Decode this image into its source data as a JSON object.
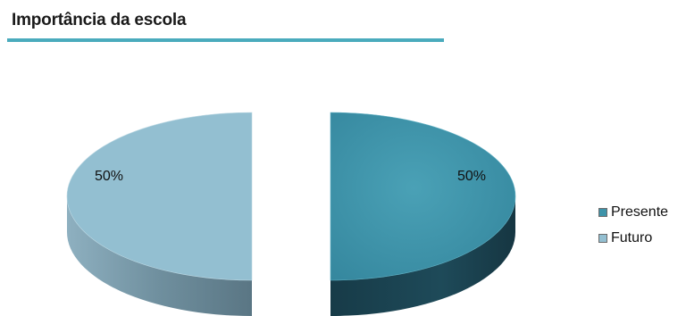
{
  "chart_data": {
    "type": "pie",
    "title": "Importância da escola",
    "categories": [
      "Presente",
      "Futuro"
    ],
    "values": [
      50,
      50
    ],
    "data_labels": [
      "50%",
      "50%"
    ],
    "colors": [
      "#4097ad",
      "#93bfd1"
    ],
    "legend_position": "right",
    "exploded": true,
    "three_d": true
  }
}
